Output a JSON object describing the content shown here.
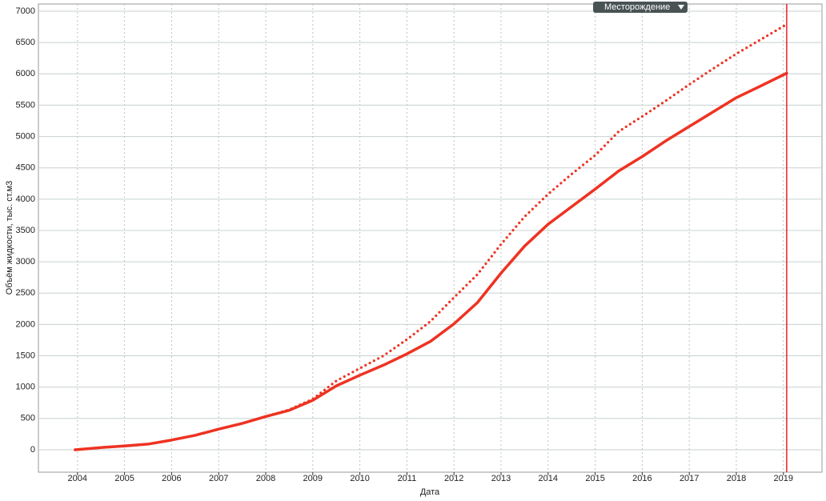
{
  "dropdown": "Месторождение",
  "chart_data": {
    "type": "line",
    "xlabel": "Дата",
    "ylabel": "Объём жидкости, тыс. ст.м3",
    "x": [
      2003.95,
      2004.5,
      2005,
      2005.5,
      2006,
      2006.5,
      2007,
      2007.5,
      2008,
      2008.5,
      2009,
      2009.5,
      2010,
      2010.5,
      2011,
      2011.5,
      2012,
      2012.5,
      2013,
      2013.5,
      2014,
      2014.5,
      2015,
      2015.5,
      2016,
      2016.5,
      2017,
      2017.5,
      2018,
      2018.5,
      2019.07
    ],
    "series": [
      {
        "color": "#ee3322",
        "style": "solid",
        "values": [
          0,
          35,
          60,
          90,
          155,
          230,
          330,
          420,
          530,
          630,
          790,
          1020,
          1190,
          1350,
          1530,
          1730,
          2010,
          2350,
          2820,
          3250,
          3600,
          3880,
          4160,
          4450,
          4680,
          4930,
          5160,
          5390,
          5620,
          5800,
          6010
        ]
      },
      {
        "color": "#ee3322",
        "style": "dotted",
        "values": [
          0,
          35,
          60,
          90,
          155,
          230,
          330,
          420,
          530,
          640,
          810,
          1100,
          1300,
          1500,
          1760,
          2050,
          2430,
          2800,
          3280,
          3720,
          4080,
          4400,
          4700,
          5080,
          5320,
          5570,
          5830,
          6080,
          6320,
          6540,
          6790
        ]
      }
    ],
    "marker_x": 2019.07,
    "marker_color": "#e8202a",
    "xlim": [
      2003.17,
      2019.82
    ],
    "xticks": [
      2004,
      2005,
      2006,
      2007,
      2008,
      2009,
      2010,
      2011,
      2012,
      2013,
      2014,
      2015,
      2016,
      2017,
      2018,
      2019
    ],
    "ylim": [
      -358,
      7115
    ],
    "yticks": [
      0,
      500,
      1000,
      1500,
      2000,
      2500,
      3000,
      3500,
      4000,
      4500,
      5000,
      5500,
      6000,
      6500,
      7000
    ],
    "grid": true
  }
}
